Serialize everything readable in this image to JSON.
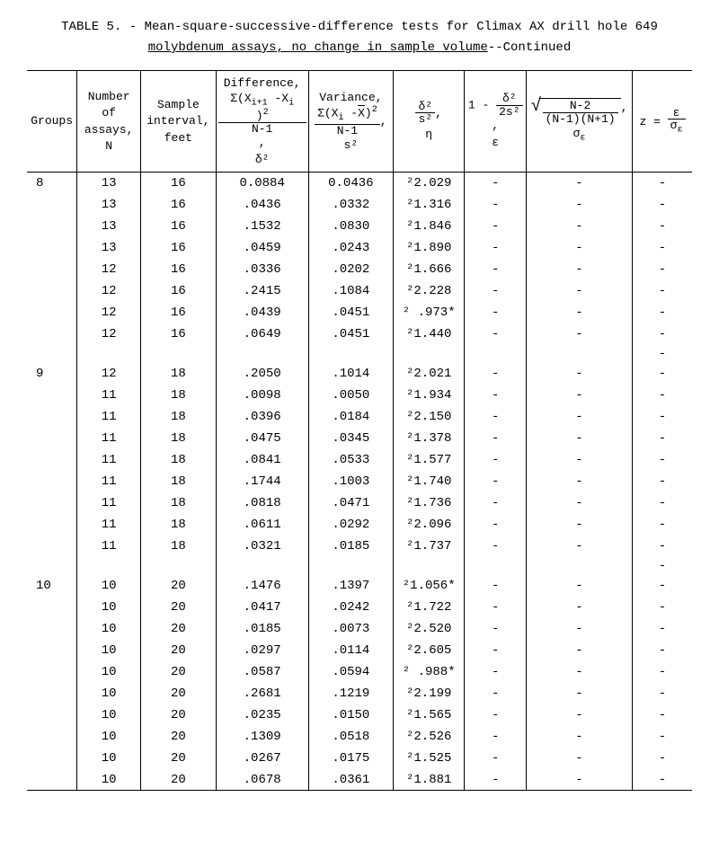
{
  "title": {
    "prefix": "TABLE 5. - ",
    "line1_underlined": "Mean-square-successive-difference tests for Climax AX drill hole 649",
    "line2_underlined": "molybdenum assays, no change in sample volume",
    "suffix": "--Continued"
  },
  "headers": {
    "groups": "Groups",
    "assays_l1": "Number",
    "assays_l2": "of",
    "assays_l3": "assays,",
    "assays_l4": "N",
    "interval_l1": "Sample",
    "interval_l2": "interval,",
    "interval_l3": "feet",
    "diff_l1": "Difference,",
    "diff_num": "Σ(X",
    "diff_numA": "i+1",
    "diff_numB": " -X",
    "diff_numC": "i",
    "diff_numD": " )",
    "diff_sq": "2",
    "diff_comma": ",",
    "diff_den": "N-1",
    "diff_sym": "δ²",
    "var_l1": "Variance,",
    "var_num": "Σ(X",
    "var_numA": "i",
    "var_numB": " -",
    "var_xbar": "X",
    "var_numC": ")",
    "var_sq": "2",
    "var_comma": ",",
    "var_den": "N-1",
    "var_sym": "s²",
    "ratio_num": "δ²",
    "ratio_den": "s²",
    "ratio_comma": ",",
    "ratio_sym": "η",
    "eps_pre": "1 -",
    "eps_num": "δ²",
    "eps_den": "2s²",
    "eps_comma": ",",
    "eps_sym": "ε",
    "sigma_num": "N-2",
    "sigma_den": "(N-1)(N+1)",
    "sigma_comma": ",",
    "sigma_sym": "σ",
    "sigma_sub": "ε",
    "z_lhs": "z = ",
    "z_num": "ε",
    "z_den": "σ",
    "z_den_sub": "ε"
  },
  "groups": [
    {
      "label": "8",
      "rows": [
        {
          "n": "13",
          "int": "16",
          "diff": "0.0884",
          "var": "0.0436",
          "eta": "²2.029",
          "eps": "-",
          "sig": "-",
          "z": "-"
        },
        {
          "n": "13",
          "int": "16",
          "diff": ".0436",
          "var": ".0332",
          "eta": "²1.316",
          "eps": "-",
          "sig": "-",
          "z": "-"
        },
        {
          "n": "13",
          "int": "16",
          "diff": ".1532",
          "var": ".0830",
          "eta": "²1.846",
          "eps": "-",
          "sig": "-",
          "z": "-"
        },
        {
          "n": "13",
          "int": "16",
          "diff": ".0459",
          "var": ".0243",
          "eta": "²1.890",
          "eps": "-",
          "sig": "-",
          "z": "-"
        },
        {
          "n": "12",
          "int": "16",
          "diff": ".0336",
          "var": ".0202",
          "eta": "²1.666",
          "eps": "-",
          "sig": "-",
          "z": "-"
        },
        {
          "n": "12",
          "int": "16",
          "diff": ".2415",
          "var": ".1084",
          "eta": "²2.228",
          "eps": "-",
          "sig": "-",
          "z": "-"
        },
        {
          "n": "12",
          "int": "16",
          "diff": ".0439",
          "var": ".0451",
          "eta": "² .973*",
          "eps": "-",
          "sig": "-",
          "z": "-"
        },
        {
          "n": "12",
          "int": "16",
          "diff": ".0649",
          "var": ".0451",
          "eta": "²1.440",
          "eps": "-",
          "sig": "-",
          "z": "-"
        }
      ]
    },
    {
      "label": "9",
      "rows": [
        {
          "n": "12",
          "int": "18",
          "diff": ".2050",
          "var": ".1014",
          "eta": "²2.021",
          "eps": "-",
          "sig": "-",
          "z": "-"
        },
        {
          "n": "11",
          "int": "18",
          "diff": ".0098",
          "var": ".0050",
          "eta": "²1.934",
          "eps": "-",
          "sig": "-",
          "z": "-"
        },
        {
          "n": "11",
          "int": "18",
          "diff": ".0396",
          "var": ".0184",
          "eta": "²2.150",
          "eps": "-",
          "sig": "-",
          "z": "-"
        },
        {
          "n": "11",
          "int": "18",
          "diff": ".0475",
          "var": ".0345",
          "eta": "²1.378",
          "eps": "-",
          "sig": "-",
          "z": "-"
        },
        {
          "n": "11",
          "int": "18",
          "diff": ".0841",
          "var": ".0533",
          "eta": "²1.577",
          "eps": "-",
          "sig": "-",
          "z": "-"
        },
        {
          "n": "11",
          "int": "18",
          "diff": ".1744",
          "var": ".1003",
          "eta": "²1.740",
          "eps": "-",
          "sig": "-",
          "z": "-"
        },
        {
          "n": "11",
          "int": "18",
          "diff": ".0818",
          "var": ".0471",
          "eta": "²1.736",
          "eps": "-",
          "sig": "-",
          "z": "-"
        },
        {
          "n": "11",
          "int": "18",
          "diff": ".0611",
          "var": ".0292",
          "eta": "²2.096",
          "eps": "-",
          "sig": "-",
          "z": "-"
        },
        {
          "n": "11",
          "int": "18",
          "diff": ".0321",
          "var": ".0185",
          "eta": "²1.737",
          "eps": "-",
          "sig": "-",
          "z": "-"
        }
      ]
    },
    {
      "label": "10",
      "rows": [
        {
          "n": "10",
          "int": "20",
          "diff": ".1476",
          "var": ".1397",
          "eta": "²1.056*",
          "eps": "-",
          "sig": "-",
          "z": "-"
        },
        {
          "n": "10",
          "int": "20",
          "diff": ".0417",
          "var": ".0242",
          "eta": "²1.722",
          "eps": "-",
          "sig": "-",
          "z": "-"
        },
        {
          "n": "10",
          "int": "20",
          "diff": ".0185",
          "var": ".0073",
          "eta": "²2.520",
          "eps": "-",
          "sig": "-",
          "z": "-"
        },
        {
          "n": "10",
          "int": "20",
          "diff": ".0297",
          "var": ".0114",
          "eta": "²2.605",
          "eps": "-",
          "sig": "-",
          "z": "-"
        },
        {
          "n": "10",
          "int": "20",
          "diff": ".0587",
          "var": ".0594",
          "eta": "² .988*",
          "eps": "-",
          "sig": "-",
          "z": "-"
        },
        {
          "n": "10",
          "int": "20",
          "diff": ".2681",
          "var": ".1219",
          "eta": "²2.199",
          "eps": "-",
          "sig": "-",
          "z": "-"
        },
        {
          "n": "10",
          "int": "20",
          "diff": ".0235",
          "var": ".0150",
          "eta": "²1.565",
          "eps": "-",
          "sig": "-",
          "z": "-"
        },
        {
          "n": "10",
          "int": "20",
          "diff": ".1309",
          "var": ".0518",
          "eta": "²2.526",
          "eps": "-",
          "sig": "-",
          "z": "-"
        },
        {
          "n": "10",
          "int": "20",
          "diff": ".0267",
          "var": ".0175",
          "eta": "²1.525",
          "eps": "-",
          "sig": "-",
          "z": "-"
        },
        {
          "n": "10",
          "int": "20",
          "diff": ".0678",
          "var": ".0361",
          "eta": "²1.881",
          "eps": "-",
          "sig": "-",
          "z": "-"
        }
      ]
    }
  ]
}
